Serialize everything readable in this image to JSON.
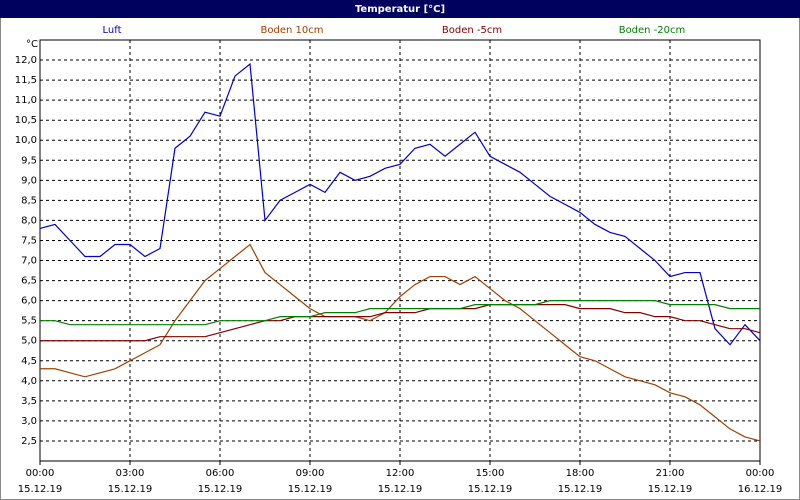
{
  "chart_data": {
    "type": "line",
    "title": "Temperatur [°C]",
    "y_label": "°C",
    "x": [
      0,
      0.5,
      1,
      1.5,
      2,
      2.5,
      3,
      3.5,
      4,
      4.5,
      5,
      5.5,
      6,
      6.5,
      7,
      7.5,
      8,
      8.5,
      9,
      9.5,
      10,
      10.5,
      11,
      11.5,
      12,
      12.5,
      13,
      13.5,
      14,
      14.5,
      15,
      15.5,
      16,
      16.5,
      17,
      17.5,
      18,
      18.5,
      19,
      19.5,
      20,
      20.5,
      21,
      21.5,
      22,
      22.5,
      23,
      23.5,
      24
    ],
    "series": [
      {
        "name": "Luft",
        "color": "#0000cc",
        "values": [
          7.8,
          7.9,
          7.5,
          7.1,
          7.1,
          7.4,
          7.4,
          7.1,
          7.3,
          9.8,
          10.1,
          10.7,
          10.6,
          11.6,
          11.9,
          8.0,
          8.5,
          8.7,
          8.9,
          8.7,
          9.2,
          9.0,
          9.1,
          9.3,
          9.4,
          9.8,
          9.9,
          9.6,
          9.9,
          10.2,
          9.6,
          9.4,
          9.2,
          8.9,
          8.6,
          8.4,
          8.2,
          7.9,
          7.7,
          7.6,
          7.3,
          7.0,
          6.6,
          6.7,
          6.7,
          5.3,
          4.9,
          5.4,
          5.0
        ]
      },
      {
        "name": "Boden 10cm",
        "color": "#a04000",
        "values": [
          4.3,
          4.3,
          4.2,
          4.1,
          4.2,
          4.3,
          4.5,
          4.7,
          4.9,
          5.5,
          6.0,
          6.5,
          6.8,
          7.1,
          7.4,
          6.7,
          6.4,
          6.1,
          5.8,
          5.6,
          5.6,
          5.6,
          5.5,
          5.7,
          6.1,
          6.4,
          6.6,
          6.6,
          6.4,
          6.6,
          6.3,
          6.0,
          5.8,
          5.5,
          5.2,
          4.9,
          4.6,
          4.5,
          4.3,
          4.1,
          4.0,
          3.9,
          3.7,
          3.6,
          3.4,
          3.1,
          2.8,
          2.6,
          2.5
        ]
      },
      {
        "name": "Boden -5cm",
        "color": "#800000",
        "values": [
          5.0,
          5.0,
          5.0,
          5.0,
          5.0,
          5.0,
          5.0,
          5.0,
          5.1,
          5.1,
          5.1,
          5.1,
          5.2,
          5.3,
          5.4,
          5.5,
          5.5,
          5.6,
          5.6,
          5.6,
          5.6,
          5.6,
          5.6,
          5.7,
          5.7,
          5.7,
          5.8,
          5.8,
          5.8,
          5.8,
          5.9,
          5.9,
          5.9,
          5.9,
          5.9,
          5.9,
          5.8,
          5.8,
          5.8,
          5.7,
          5.7,
          5.6,
          5.6,
          5.5,
          5.5,
          5.4,
          5.3,
          5.3,
          5.2
        ]
      },
      {
        "name": "Boden -20cm",
        "color": "#008000",
        "values": [
          5.5,
          5.5,
          5.4,
          5.4,
          5.4,
          5.4,
          5.4,
          5.4,
          5.4,
          5.4,
          5.4,
          5.4,
          5.5,
          5.5,
          5.5,
          5.5,
          5.6,
          5.6,
          5.6,
          5.7,
          5.7,
          5.7,
          5.8,
          5.8,
          5.8,
          5.8,
          5.8,
          5.8,
          5.8,
          5.9,
          5.9,
          5.9,
          5.9,
          5.9,
          6.0,
          6.0,
          6.0,
          6.0,
          6.0,
          6.0,
          6.0,
          6.0,
          5.9,
          5.9,
          5.9,
          5.9,
          5.8,
          5.8,
          5.8
        ]
      }
    ],
    "xlim": [
      0,
      24
    ],
    "xticks": [
      {
        "value": 0,
        "label": "00:00"
      },
      {
        "value": 3,
        "label": "03:00"
      },
      {
        "value": 6,
        "label": "06:00"
      },
      {
        "value": 9,
        "label": "09:00"
      },
      {
        "value": 12,
        "label": "12:00"
      },
      {
        "value": 15,
        "label": "15:00"
      },
      {
        "value": 18,
        "label": "18:00"
      },
      {
        "value": 21,
        "label": "21:00"
      },
      {
        "value": 24,
        "label": "00:00"
      }
    ],
    "xtick_dates": [
      "15.12.19",
      "15.12.19",
      "15.12.19",
      "15.12.19",
      "15.12.19",
      "15.12.19",
      "15.12.19",
      "15.12.19",
      "16.12.19"
    ],
    "ylim": [
      2,
      12.5
    ],
    "yticks": [
      {
        "value": 2.5,
        "label": "2,5"
      },
      {
        "value": 3,
        "label": "3,0"
      },
      {
        "value": 3.5,
        "label": "3,5"
      },
      {
        "value": 4,
        "label": "4,0"
      },
      {
        "value": 4.5,
        "label": "4,5"
      },
      {
        "value": 5,
        "label": "5,0"
      },
      {
        "value": 5.5,
        "label": "5,5"
      },
      {
        "value": 6,
        "label": "6,0"
      },
      {
        "value": 6.5,
        "label": "6,5"
      },
      {
        "value": 7,
        "label": "7,0"
      },
      {
        "value": 7.5,
        "label": "7,5"
      },
      {
        "value": 8,
        "label": "8,0"
      },
      {
        "value": 8.5,
        "label": "8,5"
      },
      {
        "value": 9,
        "label": "9,0"
      },
      {
        "value": 9.5,
        "label": "9,5"
      },
      {
        "value": 10,
        "label": "10,0"
      },
      {
        "value": 10.5,
        "label": "10,5"
      },
      {
        "value": 11,
        "label": "11,0"
      },
      {
        "value": 11.5,
        "label": "11,5"
      },
      {
        "value": 12,
        "label": "12,0"
      }
    ],
    "grid": true
  }
}
